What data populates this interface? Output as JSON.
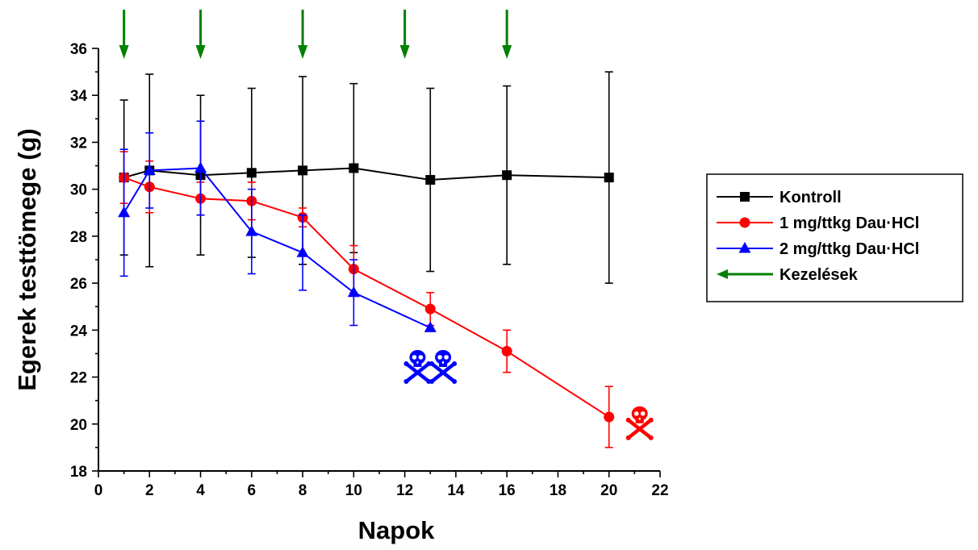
{
  "chart_data": {
    "type": "line",
    "xlabel": "Napok",
    "ylabel": "Egerek testtömege (g)",
    "xlim": [
      0,
      22
    ],
    "ylim": [
      18,
      36
    ],
    "x_ticks": [
      0,
      2,
      4,
      6,
      8,
      10,
      12,
      14,
      16,
      18,
      20,
      22
    ],
    "y_ticks": [
      18,
      20,
      22,
      24,
      26,
      28,
      30,
      32,
      34,
      36
    ],
    "grid": false,
    "legend_position": "right",
    "series": [
      {
        "name": "Kontroll",
        "color": "#000000",
        "marker": "square",
        "x": [
          1,
          2,
          4,
          6,
          8,
          10,
          13,
          16,
          20
        ],
        "y": [
          30.5,
          30.8,
          30.6,
          30.7,
          30.8,
          30.9,
          30.4,
          30.6,
          30.5
        ],
        "error": [
          3.3,
          4.1,
          3.4,
          3.6,
          4.0,
          3.6,
          3.9,
          3.8,
          4.5
        ]
      },
      {
        "name": "1 mg/ttkg Dau·HCl",
        "color": "#ff0000",
        "marker": "circle",
        "x": [
          1,
          2,
          4,
          6,
          8,
          10,
          13,
          16,
          20
        ],
        "y": [
          30.5,
          30.1,
          29.6,
          29.5,
          28.8,
          26.6,
          24.9,
          23.1,
          20.3
        ],
        "error": [
          1.1,
          1.1,
          0.7,
          0.8,
          0.4,
          1.0,
          0.7,
          0.9,
          1.3
        ]
      },
      {
        "name": "2 mg/ttkg Dau·HCl",
        "color": "#0000ff",
        "marker": "triangle",
        "x": [
          1,
          2,
          4,
          6,
          8,
          10,
          13
        ],
        "y": [
          29.0,
          30.8,
          30.9,
          28.2,
          27.3,
          25.6,
          24.1
        ],
        "error": [
          2.7,
          1.6,
          2.0,
          1.8,
          1.6,
          1.4,
          0
        ]
      }
    ],
    "treatments": {
      "name": "Kezelések",
      "color": "#008000",
      "x": [
        1,
        4,
        8,
        12,
        16
      ]
    },
    "death_markers": [
      {
        "x": 12.5,
        "y": 22.5,
        "color": "#0000ff",
        "icon": "skull-crossbones-icon"
      },
      {
        "x": 13.5,
        "y": 22.5,
        "color": "#0000ff",
        "icon": "skull-crossbones-icon"
      },
      {
        "x": 21.2,
        "y": 20.1,
        "color": "#ff0000",
        "icon": "skull-crossbones-icon"
      }
    ]
  }
}
